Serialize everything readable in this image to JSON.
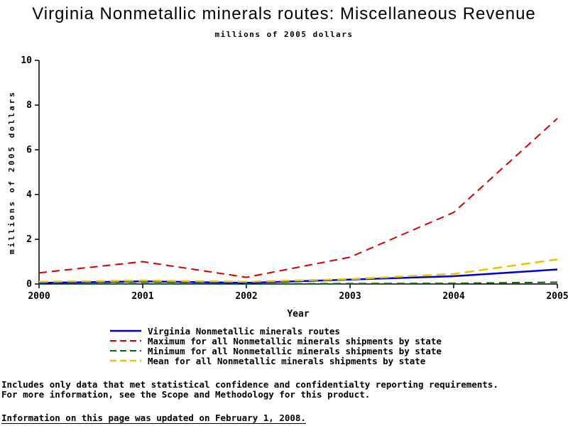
{
  "page": {
    "footnote_line1": "Includes only data that met statistical confidence and confidentialty reporting requirements.",
    "footnote_line2": "For more information, see the Scope and Methodology for this product.",
    "updated_line": "Information on this page was updated on February 1, 2008."
  },
  "chart_data": {
    "type": "line",
    "title": "Virginia Nonmetallic minerals routes: Miscellaneous Revenue",
    "subtitle": "millions of 2005 dollars",
    "xlabel": "Year",
    "ylabel": "millions of 2005 dollars",
    "x": [
      2000,
      2001,
      2002,
      2003,
      2004,
      2005
    ],
    "xlim": [
      2000,
      2005
    ],
    "ylim": [
      0,
      10
    ],
    "xticks": [
      2000,
      2001,
      2002,
      2003,
      2004,
      2005
    ],
    "yticks": [
      0,
      2,
      4,
      6,
      8,
      10
    ],
    "grid": false,
    "legend_position": "bottom",
    "axis_color": "#000000",
    "series": [
      {
        "name": "Virginia Nonmetallic minerals routes",
        "color": "#0000cc",
        "dash": "",
        "width": 2.5,
        "values": [
          0.05,
          0.12,
          0.05,
          0.2,
          0.35,
          0.65
        ]
      },
      {
        "name": "Maximum for all Nonmetallic minerals shipments by state",
        "color": "#d40000",
        "dash": "11,7",
        "width": 2,
        "values": [
          0.5,
          1.0,
          0.3,
          1.2,
          3.2,
          7.4
        ]
      },
      {
        "name": "Minimum for all Nonmetallic minerals shipments by state",
        "color": "#006b00",
        "dash": "11,7",
        "width": 2,
        "values": [
          0.0,
          0.02,
          0.0,
          0.02,
          0.03,
          0.08
        ]
      },
      {
        "name": "Mean for all Nonmetallic minerals shipments by state",
        "color": "#e8c400",
        "dash": "13,7",
        "width": 2.5,
        "values": [
          0.1,
          0.15,
          0.1,
          0.22,
          0.45,
          1.1
        ]
      }
    ]
  }
}
